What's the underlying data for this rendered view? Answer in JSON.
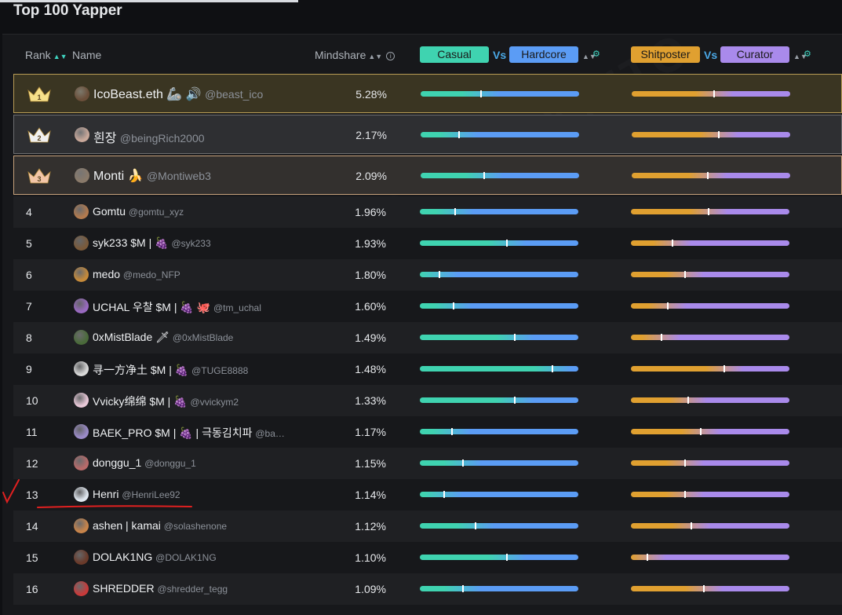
{
  "page": {
    "title": "Top 100 Yapper"
  },
  "header": {
    "rank": "Rank",
    "name": "Name",
    "mindshare": "Mindshare",
    "casual": "Casual",
    "vs1": "Vs",
    "hardcore": "Hardcore",
    "shitposter": "Shitposter",
    "vs2": "Vs",
    "curator": "Curator"
  },
  "colors": {
    "casual": "#3fd3b0",
    "hardcore": "#5b9cf5",
    "shitposter": "#e0a030",
    "curator": "#a98aeb"
  },
  "rows": [
    {
      "rank": "1",
      "name": "IcoBeast.eth 🦾 🔊",
      "handle": "@beast_ico",
      "mindshare": "5.28%",
      "casual_pos": 0.38,
      "curator_pos": 0.52,
      "avatar_color": "#6b4f3a"
    },
    {
      "rank": "2",
      "name": "흰장",
      "handle": "@beingRich2000",
      "mindshare": "2.17%",
      "casual_pos": 0.24,
      "curator_pos": 0.55,
      "avatar_color": "#c8a89a"
    },
    {
      "rank": "3",
      "name": "Monti 🍌",
      "handle": "@Montiweb3",
      "mindshare": "2.09%",
      "casual_pos": 0.4,
      "curator_pos": 0.48,
      "avatar_color": "#8a7a6a"
    },
    {
      "rank": "4",
      "name": "Gomtu",
      "handle": "@gomtu_xyz",
      "mindshare": "1.96%",
      "casual_pos": 0.22,
      "curator_pos": 0.49,
      "avatar_color": "#b27a4e"
    },
    {
      "rank": "5",
      "name": "syk233 $M | 🍇",
      "handle": "@syk233",
      "mindshare": "1.93%",
      "casual_pos": 0.55,
      "curator_pos": 0.26,
      "avatar_color": "#7a5a3a"
    },
    {
      "rank": "6",
      "name": "medo",
      "handle": "@medo_NFP",
      "mindshare": "1.80%",
      "casual_pos": 0.12,
      "curator_pos": 0.34,
      "avatar_color": "#c58a3a"
    },
    {
      "rank": "7",
      "name": "UCHAL 우찰 $M | 🍇 🐙",
      "handle": "@tm_uchal",
      "mindshare": "1.60%",
      "casual_pos": 0.21,
      "curator_pos": 0.23,
      "avatar_color": "#9a6ac2"
    },
    {
      "rank": "8",
      "name": "0xMistBlade 🗡",
      "handle": "@0xMistBlade",
      "mindshare": "1.49%",
      "casual_pos": 0.6,
      "curator_pos": 0.19,
      "avatar_color": "#4a6a3a"
    },
    {
      "rank": "9",
      "name": "寻一方净土 $M | 🍇",
      "handle": "@TUGE8888",
      "mindshare": "1.48%",
      "casual_pos": 0.84,
      "curator_pos": 0.59,
      "avatar_color": "#d8d8d8"
    },
    {
      "rank": "10",
      "name": "Vvicky绵绵 $M | 🍇",
      "handle": "@vvickym2",
      "mindshare": "1.33%",
      "casual_pos": 0.6,
      "curator_pos": 0.36,
      "avatar_color": "#e8c8d8"
    },
    {
      "rank": "11",
      "name": "BAEK_PRO $M | 🍇 | 극동김치파",
      "handle": "@ba…",
      "mindshare": "1.17%",
      "casual_pos": 0.2,
      "curator_pos": 0.44,
      "avatar_color": "#9a8ac8"
    },
    {
      "rank": "12",
      "name": "donggu_1",
      "handle": "@donggu_1",
      "mindshare": "1.15%",
      "casual_pos": 0.27,
      "curator_pos": 0.34,
      "avatar_color": "#b86a6a"
    },
    {
      "rank": "13",
      "name": "Henri",
      "handle": "@HenriLee92",
      "mindshare": "1.14%",
      "casual_pos": 0.15,
      "curator_pos": 0.34,
      "avatar_color": "#dfe6ee"
    },
    {
      "rank": "14",
      "name": "ashen | kamai",
      "handle": "@solashenone",
      "mindshare": "1.12%",
      "casual_pos": 0.35,
      "curator_pos": 0.38,
      "avatar_color": "#c8844a"
    },
    {
      "rank": "15",
      "name": "DOLAK1NG",
      "handle": "@DOLAK1NG",
      "mindshare": "1.10%",
      "casual_pos": 0.55,
      "curator_pos": 0.1,
      "avatar_color": "#6a3a2a"
    },
    {
      "rank": "16",
      "name": "SHREDDER",
      "handle": "@shredder_tegg",
      "mindshare": "1.09%",
      "casual_pos": 0.27,
      "curator_pos": 0.46,
      "avatar_color": "#c83a3a"
    }
  ]
}
